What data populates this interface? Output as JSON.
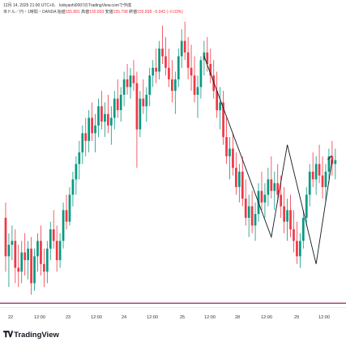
{
  "header": {
    "line1": "12月 14, 2025 21:00 UTC+9、 kobyashi0007のTradingView.comで作成",
    "symbol": "米ドル／円・1時間・OANDA",
    "ohlc": [
      {
        "label": "始値",
        "value": "155.881"
      },
      {
        "label": "高値",
        "value": "155.893"
      },
      {
        "label": "安値",
        "value": "155.798"
      },
      {
        "label": "終値",
        "value": "155.838"
      }
    ],
    "change": "−0.043 (−0.03%)"
  },
  "colors": {
    "up": "#089981",
    "down": "#f23645",
    "line": "#131722",
    "hline": "#880e4f"
  },
  "chart_data": {
    "type": "candlestick",
    "title": "米ドル／円 1時間 OANDA",
    "x_ticks": [
      "22",
      "12:00",
      "23",
      "12:00",
      "24",
      "12:00",
      "25",
      "12:00",
      "28",
      "12:00",
      "29",
      "12:00"
    ],
    "ylim": [
      153.1,
      156.85
    ],
    "horizontal_line": 153.14,
    "zigzag": [
      {
        "i": 62,
        "y": 156.35
      },
      {
        "i": 83,
        "y": 154.0
      },
      {
        "i": 88,
        "y": 155.2
      },
      {
        "i": 97,
        "y": 153.65
      },
      {
        "i": 102,
        "y": 155.0
      }
    ],
    "arrow_at": {
      "i": 102,
      "y": 155.0
    },
    "candles": [
      [
        154.25,
        154.45,
        153.55,
        153.75
      ],
      [
        153.75,
        154.05,
        153.35,
        153.9
      ],
      [
        153.9,
        154.15,
        153.7,
        153.95
      ],
      [
        153.95,
        154.1,
        153.4,
        153.6
      ],
      [
        153.6,
        153.9,
        153.35,
        153.55
      ],
      [
        153.55,
        153.95,
        153.4,
        153.8
      ],
      [
        153.8,
        154.05,
        153.5,
        153.7
      ],
      [
        153.7,
        153.95,
        153.45,
        153.85
      ],
      [
        153.85,
        154.0,
        153.25,
        153.4
      ],
      [
        153.4,
        153.85,
        153.3,
        153.75
      ],
      [
        153.75,
        154.05,
        153.55,
        153.95
      ],
      [
        153.95,
        154.15,
        153.5,
        153.65
      ],
      [
        153.65,
        153.85,
        153.35,
        153.55
      ],
      [
        153.55,
        153.95,
        153.4,
        153.85
      ],
      [
        153.85,
        154.2,
        153.7,
        154.1
      ],
      [
        154.1,
        154.35,
        153.85,
        153.95
      ],
      [
        153.95,
        154.15,
        153.55,
        153.7
      ],
      [
        153.7,
        154.05,
        153.6,
        153.95
      ],
      [
        153.95,
        154.45,
        153.85,
        154.35
      ],
      [
        154.35,
        154.55,
        154.1,
        154.2
      ],
      [
        154.2,
        154.65,
        154.15,
        154.55
      ],
      [
        154.55,
        154.85,
        154.4,
        154.75
      ],
      [
        154.75,
        155.05,
        154.55,
        154.95
      ],
      [
        154.95,
        155.25,
        154.75,
        155.1
      ],
      [
        155.1,
        155.45,
        154.95,
        155.35
      ],
      [
        155.35,
        155.55,
        155.05,
        155.25
      ],
      [
        155.25,
        155.65,
        155.1,
        155.55
      ],
      [
        155.55,
        155.75,
        155.25,
        155.35
      ],
      [
        155.35,
        155.6,
        155.1,
        155.45
      ],
      [
        155.45,
        155.8,
        155.3,
        155.7
      ],
      [
        155.7,
        155.9,
        155.4,
        155.5
      ],
      [
        155.5,
        155.75,
        155.3,
        155.6
      ],
      [
        155.6,
        155.85,
        155.35,
        155.45
      ],
      [
        155.45,
        155.7,
        155.2,
        155.55
      ],
      [
        155.55,
        155.9,
        155.4,
        155.8
      ],
      [
        155.8,
        156.05,
        155.55,
        155.65
      ],
      [
        155.65,
        155.95,
        155.5,
        155.85
      ],
      [
        155.85,
        156.15,
        155.7,
        156.05
      ],
      [
        156.05,
        156.25,
        155.85,
        155.95
      ],
      [
        155.95,
        156.2,
        155.8,
        156.1
      ],
      [
        156.1,
        156.3,
        155.9,
        156.0
      ],
      [
        156.0,
        156.15,
        154.9,
        155.4
      ],
      [
        155.4,
        155.9,
        155.3,
        155.8
      ],
      [
        155.8,
        156.05,
        155.6,
        155.7
      ],
      [
        155.7,
        155.95,
        155.5,
        155.85
      ],
      [
        155.85,
        156.2,
        155.7,
        156.1
      ],
      [
        156.1,
        156.3,
        155.95,
        156.2
      ],
      [
        156.2,
        156.45,
        156.0,
        156.15
      ],
      [
        156.15,
        156.55,
        156.05,
        156.45
      ],
      [
        156.45,
        156.75,
        156.25,
        156.35
      ],
      [
        156.35,
        156.6,
        156.1,
        156.2
      ],
      [
        156.2,
        156.45,
        155.95,
        156.05
      ],
      [
        156.05,
        156.3,
        155.75,
        155.9
      ],
      [
        155.9,
        156.15,
        155.6,
        156.05
      ],
      [
        156.05,
        156.45,
        155.95,
        156.35
      ],
      [
        156.35,
        156.7,
        156.2,
        156.55
      ],
      [
        156.55,
        156.8,
        156.3,
        156.4
      ],
      [
        156.4,
        156.6,
        156.05,
        156.2
      ],
      [
        156.2,
        156.5,
        155.9,
        156.1
      ],
      [
        156.1,
        156.35,
        155.75,
        155.85
      ],
      [
        155.85,
        156.1,
        155.55,
        155.95
      ],
      [
        155.95,
        156.35,
        155.8,
        156.3
      ],
      [
        156.3,
        156.55,
        156.1,
        156.4
      ],
      [
        156.4,
        156.6,
        156.15,
        156.25
      ],
      [
        156.25,
        156.45,
        156.0,
        156.1
      ],
      [
        156.1,
        156.3,
        155.8,
        155.9
      ],
      [
        155.9,
        156.15,
        155.55,
        155.65
      ],
      [
        155.65,
        155.95,
        155.4,
        155.75
      ],
      [
        155.75,
        155.9,
        155.2,
        155.3
      ],
      [
        155.3,
        155.55,
        154.95,
        155.05
      ],
      [
        155.05,
        155.3,
        154.75,
        155.15
      ],
      [
        155.15,
        155.35,
        154.8,
        154.9
      ],
      [
        154.9,
        155.1,
        154.55,
        154.65
      ],
      [
        154.65,
        154.95,
        154.45,
        154.85
      ],
      [
        154.85,
        155.05,
        154.4,
        154.5
      ],
      [
        154.5,
        154.75,
        154.15,
        154.25
      ],
      [
        154.25,
        154.55,
        154.0,
        154.4
      ],
      [
        154.4,
        154.6,
        154.05,
        154.15
      ],
      [
        154.15,
        154.45,
        153.95,
        154.3
      ],
      [
        154.3,
        154.7,
        154.2,
        154.6
      ],
      [
        154.6,
        154.85,
        154.35,
        154.45
      ],
      [
        154.45,
        154.7,
        154.25,
        154.55
      ],
      [
        154.55,
        154.9,
        154.4,
        154.75
      ],
      [
        154.75,
        155.05,
        154.5,
        154.6
      ],
      [
        154.6,
        154.85,
        154.35,
        154.7
      ],
      [
        154.7,
        154.95,
        154.45,
        154.55
      ],
      [
        154.55,
        154.8,
        154.25,
        154.4
      ],
      [
        154.4,
        154.65,
        154.05,
        154.2
      ],
      [
        154.2,
        154.5,
        153.95,
        154.35
      ],
      [
        154.35,
        154.55,
        154.0,
        154.1
      ],
      [
        154.1,
        154.35,
        153.8,
        153.95
      ],
      [
        153.95,
        154.2,
        153.65,
        153.75
      ],
      [
        153.75,
        154.05,
        153.6,
        153.95
      ],
      [
        153.95,
        154.35,
        153.85,
        154.25
      ],
      [
        154.25,
        154.65,
        154.15,
        154.55
      ],
      [
        154.55,
        154.95,
        154.4,
        154.85
      ],
      [
        154.85,
        155.1,
        154.65,
        154.75
      ],
      [
        154.75,
        155.05,
        154.55,
        154.95
      ],
      [
        154.95,
        155.2,
        154.7,
        154.8
      ],
      [
        154.8,
        155.05,
        154.5,
        154.65
      ],
      [
        154.65,
        154.95,
        154.45,
        154.85
      ],
      [
        154.85,
        155.15,
        154.7,
        155.05
      ],
      [
        155.05,
        155.25,
        154.8,
        154.95
      ],
      [
        154.95,
        155.15,
        154.75,
        155.0
      ]
    ]
  }
}
